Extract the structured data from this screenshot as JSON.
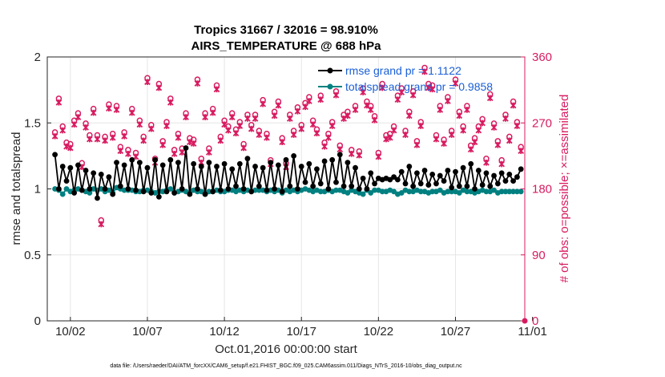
{
  "chart_data": {
    "type": "line",
    "title": "Tropics 31667 / 32016 = 98.910%",
    "subtitle": "AIRS_TEMPERATURE @ 688 hPa",
    "xlabel": "Oct.01,2016 00:00:00 start",
    "ylabel": "rmse and totalspread",
    "y2label": "# of obs: o=possible; ×=assimilated",
    "footnote": "data file: /Users/raeder/DAI/ATM_forcXX/CAM6_setup/f.e21.FHIST_BGC.f09_025.CAM6assim.011/Diags_NTrS_2016-10/obs_diag_output.nc",
    "xlim": [
      0.5,
      31.5
    ],
    "x_ticks": [
      2,
      7,
      12,
      17,
      22,
      27,
      32
    ],
    "x_tick_labels": [
      "10/02",
      "10/07",
      "10/12",
      "10/17",
      "10/22",
      "10/27",
      "11/01"
    ],
    "ylim": [
      0,
      2
    ],
    "y_ticks": [
      0,
      0.5,
      1,
      1.5,
      2
    ],
    "y_tick_labels": [
      "0",
      "0.5",
      "1",
      "1.5",
      "2"
    ],
    "y2lim": [
      0,
      360
    ],
    "y2_ticks": [
      0,
      90,
      180,
      270,
      360
    ],
    "y2_tick_labels": [
      "0",
      "90",
      "180",
      "270",
      "360"
    ],
    "grid": true,
    "legend_position": "top-right",
    "colors": {
      "rmse": "#000000",
      "spread": "#008080",
      "obs": "#d81b60",
      "axis_right": "#d81b60"
    },
    "series": [
      {
        "name": "rmse grand pr = 1.1122",
        "color": "#000000",
        "axis": "left",
        "x": [
          1,
          1.25,
          1.5,
          1.75,
          2,
          2.25,
          2.5,
          2.75,
          3,
          3.25,
          3.5,
          3.75,
          4,
          4.25,
          4.5,
          4.75,
          5,
          5.25,
          5.5,
          5.75,
          6,
          6.25,
          6.5,
          6.75,
          7,
          7.25,
          7.5,
          7.75,
          8,
          8.25,
          8.5,
          8.75,
          9,
          9.25,
          9.5,
          9.75,
          10,
          10.25,
          10.5,
          10.75,
          11,
          11.25,
          11.5,
          11.75,
          12,
          12.25,
          12.5,
          12.75,
          13,
          13.25,
          13.5,
          13.75,
          14,
          14.25,
          14.5,
          14.75,
          15,
          15.25,
          15.5,
          15.75,
          16,
          16.25,
          16.5,
          16.75,
          17,
          17.25,
          17.5,
          17.75,
          18,
          18.25,
          18.5,
          18.75,
          19,
          19.25,
          19.5,
          19.75,
          20,
          20.25,
          20.5,
          20.75,
          21,
          21.25,
          21.5,
          21.75,
          22,
          22.25,
          22.5,
          22.75,
          23,
          23.25,
          23.5,
          23.75,
          24,
          24.25,
          24.5,
          24.75,
          25,
          25.25,
          25.5,
          25.75,
          26,
          26.25,
          26.5,
          26.75,
          27,
          27.25,
          27.5,
          27.75,
          28,
          28.25,
          28.5,
          28.75,
          29,
          29.25,
          29.5,
          29.75,
          30,
          30.25,
          30.5,
          30.75,
          31,
          31.25
        ],
        "values": [
          1.26,
          1.0,
          1.17,
          1.06,
          1.16,
          0.97,
          1.18,
          0.99,
          1.14,
          1.0,
          1.12,
          0.93,
          1.11,
          1.0,
          1.09,
          0.96,
          1.2,
          1.02,
          1.18,
          1.0,
          1.22,
          0.99,
          1.2,
          0.98,
          1.16,
          0.97,
          1.22,
          0.94,
          1.18,
          0.98,
          1.22,
          0.97,
          1.2,
          1.0,
          1.31,
          0.96,
          1.19,
          1.0,
          1.17,
          0.96,
          1.2,
          0.98,
          1.17,
          0.99,
          1.19,
          1.0,
          1.15,
          1.02,
          1.19,
          1.0,
          1.23,
          0.98,
          1.17,
          1.02,
          1.16,
          0.99,
          1.2,
          1.0,
          1.18,
          0.98,
          1.22,
          1.02,
          1.25,
          1.0,
          1.17,
          1.05,
          1.19,
          1.02,
          1.15,
          1.04,
          1.21,
          1.0,
          1.22,
          1.05,
          1.26,
          1.02,
          1.2,
          1.02,
          1.16,
          1.0,
          1.08,
          1.0,
          1.12,
          1.04,
          1.08,
          1.07,
          1.08,
          1.07,
          1.09,
          1.07,
          1.13,
          1.04,
          1.17,
          1.02,
          1.12,
          1.04,
          1.14,
          1.03,
          1.11,
          1.04,
          1.1,
          1.06,
          1.14,
          1.01,
          1.13,
          1.02,
          1.16,
          1.02,
          1.19,
          1.0,
          1.14,
          1.03,
          1.12,
          1.02,
          1.1,
          1.04,
          1.12,
          1.06,
          1.11,
          1.06,
          1.09,
          1.15
        ]
      },
      {
        "name": "totalspread grand pr = 0.9858",
        "color": "#008080",
        "axis": "left",
        "x": [
          1,
          1.25,
          1.5,
          1.75,
          2,
          2.25,
          2.5,
          2.75,
          3,
          3.25,
          3.5,
          3.75,
          4,
          4.25,
          4.5,
          4.75,
          5,
          5.25,
          5.5,
          5.75,
          6,
          6.25,
          6.5,
          6.75,
          7,
          7.25,
          7.5,
          7.75,
          8,
          8.25,
          8.5,
          8.75,
          9,
          9.25,
          9.5,
          9.75,
          10,
          10.25,
          10.5,
          10.75,
          11,
          11.25,
          11.5,
          11.75,
          12,
          12.25,
          12.5,
          12.75,
          13,
          13.25,
          13.5,
          13.75,
          14,
          14.25,
          14.5,
          14.75,
          15,
          15.25,
          15.5,
          15.75,
          16,
          16.25,
          16.5,
          16.75,
          17,
          17.25,
          17.5,
          17.75,
          18,
          18.25,
          18.5,
          18.75,
          19,
          19.25,
          19.5,
          19.75,
          20,
          20.25,
          20.5,
          20.75,
          21,
          21.25,
          21.5,
          21.75,
          22,
          22.25,
          22.5,
          22.75,
          23,
          23.25,
          23.5,
          23.75,
          24,
          24.25,
          24.5,
          24.75,
          25,
          25.25,
          25.5,
          25.75,
          26,
          26.25,
          26.5,
          26.75,
          27,
          27.25,
          27.5,
          27.75,
          28,
          28.25,
          28.5,
          28.75,
          29,
          29.25,
          29.5,
          29.75,
          30,
          30.25,
          30.5,
          30.75,
          31,
          31.25
        ],
        "values": [
          1.0,
          0.99,
          0.96,
          1.0,
          0.98,
          0.99,
          1.0,
          0.99,
          0.98,
          0.97,
          1.0,
          0.99,
          1.0,
          0.98,
          0.99,
          0.97,
          1.01,
          1.0,
          0.99,
          0.99,
          0.99,
          0.98,
          0.98,
          0.99,
          0.99,
          0.98,
          0.97,
          0.98,
          0.98,
          0.99,
          1.0,
          0.97,
          0.98,
          0.99,
          0.98,
          0.97,
          0.99,
          0.98,
          0.98,
          0.96,
          0.98,
          0.98,
          0.99,
          0.98,
          0.98,
          0.99,
          0.99,
          0.98,
          0.99,
          0.98,
          0.99,
          0.98,
          0.99,
          0.99,
          0.99,
          0.98,
          0.99,
          0.98,
          0.99,
          0.97,
          0.99,
          0.98,
          0.99,
          0.98,
          0.99,
          1.0,
          0.99,
          0.98,
          0.99,
          0.98,
          0.98,
          0.99,
          0.98,
          0.99,
          0.99,
          0.98,
          0.97,
          0.99,
          0.98,
          0.97,
          0.96,
          0.99,
          0.97,
          0.99,
          0.99,
          0.98,
          0.98,
          0.99,
          0.98,
          0.96,
          0.97,
          0.99,
          0.98,
          0.98,
          0.99,
          0.98,
          0.98,
          0.97,
          0.98,
          0.98,
          0.99,
          0.97,
          0.98,
          0.98,
          0.98,
          0.97,
          0.99,
          0.98,
          0.98,
          0.97,
          0.98,
          0.99,
          0.98,
          0.98,
          0.99,
          0.97,
          0.98,
          0.98,
          0.98,
          0.98,
          0.98,
          0.98
        ]
      }
    ],
    "obs_counts": {
      "axis": "right",
      "color": "#d81b60",
      "x": [
        1,
        1.25,
        1.5,
        1.75,
        2,
        2.25,
        2.5,
        2.75,
        3,
        3.25,
        3.5,
        3.75,
        4,
        4.25,
        4.5,
        4.75,
        5,
        5.25,
        5.5,
        5.75,
        6,
        6.25,
        6.5,
        6.75,
        7,
        7.25,
        7.5,
        7.75,
        8,
        8.25,
        8.5,
        8.75,
        9,
        9.25,
        9.5,
        9.75,
        10,
        10.25,
        10.5,
        10.75,
        11,
        11.25,
        11.5,
        11.75,
        12,
        12.25,
        12.5,
        12.75,
        13,
        13.25,
        13.5,
        13.75,
        14,
        14.25,
        14.5,
        14.75,
        15,
        15.25,
        15.5,
        15.75,
        16,
        16.25,
        16.5,
        16.75,
        17,
        17.25,
        17.5,
        17.75,
        18,
        18.25,
        18.5,
        18.75,
        19,
        19.25,
        19.5,
        19.75,
        20,
        20.25,
        20.5,
        20.75,
        21,
        21.25,
        21.5,
        21.75,
        22,
        22.25,
        22.5,
        22.75,
        23,
        23.25,
        23.5,
        23.75,
        24,
        24.25,
        24.5,
        24.75,
        25,
        25.25,
        25.5,
        25.75,
        26,
        26.25,
        26.5,
        26.75,
        27,
        27.25,
        27.5,
        27.75,
        28,
        28.25,
        28.5,
        28.75,
        29,
        29.25,
        29.5,
        29.75,
        30,
        30.25,
        30.5,
        30.75,
        31,
        31.25
      ],
      "possible": [
        254,
        300,
        262,
        240,
        238,
        270,
        280,
        212,
        266,
        250,
        286,
        250,
        134,
        248,
        292,
        252,
        290,
        234,
        254,
        230,
        286,
        226,
        270,
        248,
        328,
        264,
        218,
        320,
        242,
        268,
        300,
        230,
        252,
        232,
        280,
        246,
        244,
        326,
        218,
        280,
        232,
        286,
        318,
        248,
        270,
        262,
        280,
        258,
        268,
        238,
        278,
        264,
        278,
        256,
        298,
        252,
        216,
        282,
        296,
        246,
        212,
        278,
        256,
        288,
        264,
        294,
        302,
        270,
        258,
        304,
        240,
        252,
        268,
        310,
        236,
        278,
        282,
        230,
        290,
        228,
        314,
        296,
        290,
        276,
        226,
        320,
        250,
        252,
        262,
        304,
        314,
        256,
        282,
        310,
        242,
        268,
        342,
        320,
        318,
        250,
        290,
        244,
        302,
        256,
        326,
        282,
        262,
        290,
        236,
        246,
        262,
        272,
        218,
        306,
        266,
        242,
        216,
        278,
        248,
        296,
        268,
        234
      ]
    }
  }
}
